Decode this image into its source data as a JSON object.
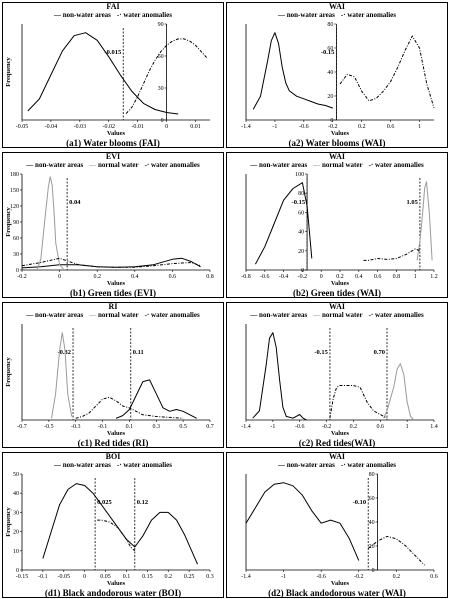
{
  "chart_data": [
    {
      "type": "line",
      "title": "FAI",
      "caption": "(a1) Water blooms (FAI)",
      "legend": [
        "non-water areas",
        "water anomalies"
      ],
      "xlabel": "Values",
      "ylabel": "Frequency",
      "xlim": [
        -0.05,
        0.015
      ],
      "xticks": [
        "-0.05",
        "-0.04",
        "-0.03",
        "-0.02",
        "-0.01",
        "0",
        "0.01"
      ],
      "xtick_values": [
        -0.05,
        -0.04,
        -0.03,
        -0.02,
        -0.01,
        0,
        0.01
      ],
      "dual_y": true,
      "ylim_right": [
        0,
        90
      ],
      "yticks_right": [
        "0",
        "30",
        "60",
        "90"
      ],
      "ytick_right_values": [
        0,
        30,
        60,
        90
      ],
      "threshold": -0.015,
      "threshold_label": "-0.015",
      "series": [
        {
          "name": "non-water areas",
          "style": "solid",
          "axis": "left",
          "x": [
            -0.048,
            -0.044,
            -0.04,
            -0.036,
            -0.032,
            -0.028,
            -0.024,
            -0.02,
            -0.016,
            -0.012,
            -0.008,
            -0.004,
            0,
            0.004
          ],
          "y": [
            6,
            14,
            30,
            46,
            56,
            58,
            53,
            42,
            30,
            19,
            11,
            7,
            5,
            4
          ]
        },
        {
          "name": "water anomalies",
          "style": "dashdot",
          "axis": "right",
          "x": [
            -0.014,
            -0.012,
            -0.01,
            -0.008,
            -0.006,
            -0.004,
            -0.002,
            0,
            0.002,
            0.004,
            0.006,
            0.008,
            0.01,
            0.012,
            0.014
          ],
          "y": [
            6,
            12,
            22,
            34,
            46,
            56,
            64,
            70,
            74,
            76,
            76,
            74,
            70,
            64,
            58
          ]
        }
      ]
    },
    {
      "type": "line",
      "title": "WAI",
      "caption": "(a2) Water blooms (WAI)",
      "legend": [
        "non-water areas",
        "water anomalies"
      ],
      "xlabel": "Values",
      "ylabel": "",
      "xlim": [
        -1.4,
        1.2
      ],
      "xticks": [
        "-1.4",
        "-1",
        "-0.6",
        "-0.2",
        "0.2",
        "0.6",
        "1"
      ],
      "xtick_values": [
        -1.4,
        -1,
        -0.6,
        -0.2,
        0.2,
        0.6,
        1
      ],
      "dual_y": true,
      "ylim_right": [
        0,
        80
      ],
      "yticks_right": [
        "0",
        "20",
        "40",
        "60",
        "80"
      ],
      "ytick_right_values": [
        0,
        20,
        40,
        60,
        80
      ],
      "threshold": -0.15,
      "threshold_label": "-0.15",
      "series": [
        {
          "name": "non-water areas",
          "style": "solid",
          "axis": "left",
          "x": [
            -1.3,
            -1.2,
            -1.1,
            -1.05,
            -1.0,
            -0.95,
            -0.9,
            -0.85,
            -0.8,
            -0.7,
            -0.6,
            -0.5,
            -0.4,
            -0.3,
            -0.2
          ],
          "y": [
            8,
            18,
            45,
            60,
            66,
            58,
            40,
            28,
            22,
            18,
            16,
            14,
            12,
            11,
            9
          ]
        },
        {
          "name": "water anomalies",
          "style": "dashdot",
          "axis": "right",
          "x": [
            -0.1,
            0,
            0.1,
            0.2,
            0.3,
            0.4,
            0.5,
            0.6,
            0.7,
            0.8,
            0.9,
            1.0,
            1.1,
            1.2
          ],
          "y": [
            30,
            38,
            36,
            24,
            16,
            18,
            24,
            32,
            44,
            58,
            70,
            60,
            30,
            10
          ]
        }
      ]
    },
    {
      "type": "line",
      "title": "EVI",
      "caption": "(b1) Green tides (EVI)",
      "legend": [
        "non-water areas",
        "normal water",
        "water anomalies"
      ],
      "xlabel": "Values",
      "ylabel": "Frequency",
      "xlim": [
        -0.2,
        0.8
      ],
      "xticks": [
        "-0.2",
        "0",
        "0.2",
        "0.4",
        "0.6",
        "0.8"
      ],
      "xtick_values": [
        -0.2,
        0,
        0.2,
        0.4,
        0.6,
        0.8
      ],
      "dual_y": false,
      "ylim_left": [
        0,
        180
      ],
      "yticks_left": [
        "0",
        "30",
        "60",
        "90",
        "120",
        "150",
        "180"
      ],
      "ytick_left_values": [
        0,
        30,
        60,
        90,
        120,
        150,
        180
      ],
      "threshold": 0.04,
      "threshold_label": "0.04",
      "series": [
        {
          "name": "non-water areas",
          "style": "solid",
          "axis": "left",
          "x": [
            -0.2,
            -0.1,
            0,
            0.1,
            0.2,
            0.3,
            0.4,
            0.5,
            0.6,
            0.65,
            0.7,
            0.75
          ],
          "y": [
            4,
            6,
            10,
            10,
            6,
            5,
            6,
            10,
            20,
            22,
            16,
            6
          ]
        },
        {
          "name": "normal water",
          "style": "gray",
          "axis": "left",
          "x": [
            -0.12,
            -0.1,
            -0.08,
            -0.06,
            -0.05,
            -0.04,
            -0.03,
            -0.02,
            0,
            0.02
          ],
          "y": [
            0,
            20,
            90,
            155,
            175,
            160,
            110,
            50,
            10,
            2
          ]
        },
        {
          "name": "water anomalies",
          "style": "dashdot",
          "axis": "left",
          "x": [
            -0.2,
            -0.1,
            0,
            0.05,
            0.1,
            0.2,
            0.3,
            0.4,
            0.5,
            0.6,
            0.7,
            0.75
          ],
          "y": [
            8,
            14,
            22,
            16,
            10,
            6,
            5,
            5,
            8,
            12,
            14,
            8
          ]
        }
      ]
    },
    {
      "type": "line",
      "title": "WAI",
      "caption": "(b2) Green tides (WAI)",
      "legend": [
        "non-water areas",
        "normal water",
        "water anomalies"
      ],
      "xlabel": "Values",
      "ylabel": "",
      "xlim": [
        -0.8,
        1.2
      ],
      "xticks": [
        "-0.8",
        "-0.6",
        "-0.4",
        "-0.2",
        "0",
        "0.2",
        "0.4",
        "0.6",
        "0.8",
        "1",
        "1.2"
      ],
      "xtick_values": [
        -0.8,
        -0.6,
        -0.4,
        -0.2,
        0,
        0.2,
        0.4,
        0.6,
        0.8,
        1,
        1.2
      ],
      "dual_y": true,
      "ylim_right": [
        0,
        100
      ],
      "yticks_right": [
        "0",
        "20",
        "40",
        "60",
        "80",
        "100"
      ],
      "ytick_right_values": [
        0,
        20,
        40,
        60,
        80,
        100
      ],
      "threshold": 1.05,
      "threshold_label": "1.05",
      "threshold2": -0.15,
      "threshold2_label": "-0.15",
      "series": [
        {
          "name": "non-water areas",
          "style": "solid",
          "axis": "left",
          "x": [
            -0.7,
            -0.6,
            -0.5,
            -0.4,
            -0.3,
            -0.2,
            -0.15,
            -0.1
          ],
          "y": [
            2,
            8,
            16,
            24,
            28,
            30,
            22,
            4
          ]
        },
        {
          "name": "normal water",
          "style": "gray",
          "axis": "right",
          "x": [
            1.02,
            1.05,
            1.08,
            1.1,
            1.12,
            1.15,
            1.18
          ],
          "y": [
            10,
            30,
            60,
            85,
            92,
            60,
            10
          ]
        },
        {
          "name": "water anomalies",
          "style": "dashdot",
          "axis": "right",
          "x": [
            0.45,
            0.5,
            0.6,
            0.7,
            0.8,
            0.9,
            1.0,
            1.05
          ],
          "y": [
            10,
            10,
            12,
            11,
            12,
            16,
            22,
            20
          ]
        }
      ]
    },
    {
      "type": "line",
      "title": "RI",
      "caption": "(c1) Red tides (RI)",
      "legend": [
        "non-water areas",
        "normal water",
        "water anomalies"
      ],
      "xlabel": "Values",
      "ylabel": "Frequency",
      "xlim": [
        -0.7,
        0.7
      ],
      "xticks": [
        "-0.7",
        "-0.5",
        "-0.3",
        "-0.1",
        "0.1",
        "0.3",
        "0.5",
        "0.7"
      ],
      "xtick_values": [
        -0.7,
        -0.5,
        -0.3,
        -0.1,
        0.1,
        0.3,
        0.5,
        0.7
      ],
      "dual_y": false,
      "threshold": -0.32,
      "threshold_label": "-0.32",
      "threshold2": 0.11,
      "threshold2_label": "0.11",
      "series": [
        {
          "name": "non-water areas",
          "style": "solid",
          "axis": "left",
          "x": [
            0,
            0.05,
            0.1,
            0.15,
            0.2,
            0.25,
            0.3,
            0.35,
            0.4,
            0.45,
            0.5,
            0.55,
            0.6
          ],
          "y": [
            2,
            5,
            12,
            28,
            44,
            46,
            30,
            14,
            10,
            12,
            10,
            6,
            2
          ]
        },
        {
          "name": "normal water",
          "style": "gray",
          "axis": "left",
          "x": [
            -0.48,
            -0.45,
            -0.42,
            -0.4,
            -0.38,
            -0.36,
            -0.33
          ],
          "y": [
            2,
            30,
            80,
            100,
            80,
            30,
            4
          ]
        },
        {
          "name": "water anomalies",
          "style": "dashdot",
          "axis": "left",
          "x": [
            -0.3,
            -0.25,
            -0.2,
            -0.15,
            -0.1,
            -0.05,
            0,
            0.05,
            0.1,
            0.15,
            0.2,
            0.3,
            0.4,
            0.5
          ],
          "y": [
            2,
            4,
            8,
            16,
            24,
            26,
            22,
            16,
            14,
            10,
            6,
            4,
            3,
            2
          ]
        }
      ]
    },
    {
      "type": "line",
      "title": "WAI",
      "caption": "(c2) Red tides(WAI)",
      "legend": [
        "non-water areas",
        "normal water",
        "water anomalies"
      ],
      "xlabel": "Values",
      "ylabel": "",
      "xlim": [
        -1.4,
        1.4
      ],
      "xticks": [
        "-1.4",
        "-1",
        "-0.6",
        "-0.2",
        "0.2",
        "0.6",
        "1",
        "1.4"
      ],
      "xtick_values": [
        -1.4,
        -1,
        -0.6,
        -0.2,
        0.2,
        0.6,
        1,
        1.4
      ],
      "dual_y": false,
      "threshold": -0.15,
      "threshold_label": "-0.15",
      "threshold2": 0.7,
      "threshold2_label": "0.70",
      "series": [
        {
          "name": "non-water areas",
          "style": "solid",
          "axis": "left",
          "x": [
            -1.3,
            -1.2,
            -1.1,
            -1.05,
            -1.0,
            -0.95,
            -0.9,
            -0.85,
            -0.8,
            -0.7,
            -0.6,
            -0.55,
            -0.5
          ],
          "y": [
            2,
            10,
            60,
            90,
            96,
            80,
            44,
            14,
            4,
            2,
            6,
            2,
            0
          ]
        },
        {
          "name": "normal water",
          "style": "gray",
          "axis": "left",
          "x": [
            0.65,
            0.7,
            0.8,
            0.85,
            0.9,
            0.95,
            1.0,
            1.05,
            1.1
          ],
          "y": [
            2,
            10,
            36,
            56,
            62,
            50,
            20,
            4,
            0
          ]
        },
        {
          "name": "water anomalies",
          "style": "dashdot",
          "axis": "left",
          "x": [
            -0.15,
            -0.1,
            -0.05,
            0,
            0.1,
            0.2,
            0.3,
            0.4,
            0.5,
            0.6,
            0.65,
            0.7
          ],
          "y": [
            2,
            24,
            36,
            38,
            38,
            38,
            36,
            20,
            10,
            6,
            4,
            2
          ]
        }
      ]
    },
    {
      "type": "line",
      "title": "BOI",
      "caption": "(d1) Black andodorous water (BOI)",
      "legend": [
        "non-water areas",
        "water anomalies"
      ],
      "xlabel": "Values",
      "ylabel": "Frequency",
      "xlim": [
        -0.15,
        0.3
      ],
      "xticks": [
        "-0.15",
        "-0.1",
        "-0.05",
        "0",
        "0.05",
        "0.1",
        "0.15",
        "0.2",
        "0.25",
        "0.3"
      ],
      "xtick_values": [
        -0.15,
        -0.1,
        -0.05,
        0,
        0.05,
        0.1,
        0.15,
        0.2,
        0.25,
        0.3
      ],
      "dual_y": false,
      "ylim_left": [
        0,
        50
      ],
      "yticks_left": [
        "0",
        "10",
        "20",
        "30",
        "40",
        "50"
      ],
      "ytick_left_values": [
        0,
        10,
        20,
        30,
        40,
        50
      ],
      "threshold": 0.025,
      "threshold_label": "0.025",
      "threshold2": 0.12,
      "threshold2_label": "0.12",
      "series": [
        {
          "name": "non-water areas",
          "style": "solid",
          "axis": "left",
          "x": [
            -0.1,
            -0.08,
            -0.06,
            -0.04,
            -0.02,
            0,
            0.02,
            0.04,
            0.06,
            0.08,
            0.1,
            0.12,
            0.14,
            0.16,
            0.18,
            0.2,
            0.22,
            0.24,
            0.26,
            0.27
          ],
          "y": [
            6,
            20,
            34,
            42,
            45,
            44,
            40,
            34,
            28,
            22,
            16,
            12,
            18,
            26,
            30,
            30,
            26,
            18,
            8,
            3
          ]
        },
        {
          "name": "water anomalies",
          "style": "dashdot",
          "axis": "left",
          "x": [
            0.03,
            0.04,
            0.06,
            0.08,
            0.1,
            0.11,
            0.12
          ],
          "y": [
            26,
            26,
            25,
            22,
            16,
            12,
            10
          ]
        }
      ]
    },
    {
      "type": "line",
      "title": "WAI",
      "caption": "(d2) Black andodorous water (WAI)",
      "legend": [
        "non-water areas",
        "water anomalies"
      ],
      "xlabel": "Values",
      "ylabel": "",
      "xlim": [
        -1.4,
        0.6
      ],
      "xticks": [
        "-1.4",
        "-1",
        "-0.6",
        "-0.2",
        "0.2",
        "0.6"
      ],
      "xtick_values": [
        -1.4,
        -1,
        -0.6,
        -0.2,
        0.2,
        0.6
      ],
      "dual_y": true,
      "ylim_right": [
        0,
        80
      ],
      "yticks_right": [
        "0",
        "20",
        "40",
        "60",
        "80"
      ],
      "ytick_right_values": [
        0,
        20,
        40,
        60,
        80
      ],
      "threshold": -0.1,
      "threshold_label": "-0.10",
      "series": [
        {
          "name": "non-water areas",
          "style": "solid",
          "axis": "left",
          "x": [
            -1.4,
            -1.3,
            -1.2,
            -1.1,
            -1.0,
            -0.9,
            -0.8,
            -0.7,
            -0.6,
            -0.5,
            -0.4,
            -0.3,
            -0.2
          ],
          "y": [
            30,
            40,
            50,
            55,
            56,
            54,
            48,
            38,
            30,
            32,
            30,
            20,
            6
          ]
        },
        {
          "name": "water anomalies",
          "style": "dashdot",
          "axis": "right",
          "x": [
            -0.1,
            0,
            0.1,
            0.2,
            0.3,
            0.4,
            0.5
          ],
          "y": [
            18,
            24,
            28,
            26,
            20,
            12,
            4
          ]
        }
      ]
    }
  ]
}
